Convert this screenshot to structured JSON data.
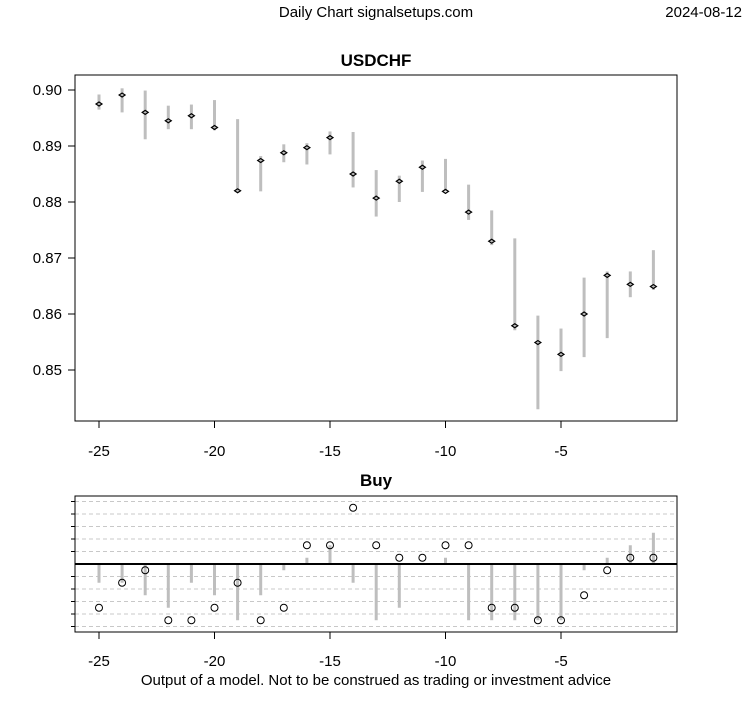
{
  "header": {
    "title": "Daily Chart signalsetups.com",
    "date": "2024-08-12"
  },
  "footer": {
    "disclaimer": "Output of a model. Not to be construed as trading or investment advice"
  },
  "chart_data": [
    {
      "type": "ohlc-range",
      "title": "USDCHF",
      "x": [
        -25,
        -24,
        -23,
        -22,
        -21,
        -20,
        -19,
        -18,
        -17,
        -16,
        -15,
        -14,
        -13,
        -12,
        -11,
        -10,
        -9,
        -8,
        -7,
        -6,
        -5,
        -4,
        -3,
        -2,
        -1
      ],
      "high": [
        0.8992,
        0.9003,
        0.8999,
        0.8972,
        0.8974,
        0.8982,
        0.8948,
        0.8882,
        0.8903,
        0.8905,
        0.8926,
        0.8925,
        0.8857,
        0.8847,
        0.8874,
        0.8877,
        0.8831,
        0.8785,
        0.8735,
        0.8597,
        0.8574,
        0.8665,
        0.8676,
        0.8676,
        0.8714
      ],
      "low": [
        0.8965,
        0.896,
        0.8912,
        0.893,
        0.893,
        0.8928,
        0.8817,
        0.8819,
        0.8871,
        0.8867,
        0.8885,
        0.8826,
        0.8774,
        0.88,
        0.8818,
        0.8819,
        0.8768,
        0.8723,
        0.8571,
        0.843,
        0.8498,
        0.8523,
        0.8557,
        0.863,
        0.8643
      ],
      "close": [
        0.8975,
        0.8991,
        0.896,
        0.8945,
        0.8954,
        0.8933,
        0.882,
        0.8874,
        0.8888,
        0.8897,
        0.8915,
        0.885,
        0.8807,
        0.8837,
        0.8862,
        0.8819,
        0.8782,
        0.873,
        0.8579,
        0.8549,
        0.8528,
        0.86,
        0.8669,
        0.8653,
        0.8649
      ],
      "xticks": [
        "-25",
        "-20",
        "-15",
        "-10",
        "-5"
      ],
      "yticks": [
        "0.85",
        "0.86",
        "0.87",
        "0.88",
        "0.89",
        "0.90"
      ],
      "ylim": [
        0.8413,
        0.9027
      ],
      "xlim": [
        -26,
        -0.0
      ],
      "colors": {
        "range": "#bebebe",
        "close": "#000000"
      }
    },
    {
      "type": "signal",
      "title": "Buy",
      "x": [
        -25,
        -24,
        -23,
        -22,
        -21,
        -20,
        -19,
        -18,
        -17,
        -16,
        -15,
        -14,
        -13,
        -12,
        -11,
        -10,
        -9,
        -8,
        -7,
        -6,
        -5,
        -4,
        -3,
        -2,
        -1
      ],
      "points": [
        -3.5,
        -1.5,
        -0.5,
        -4.5,
        -4.5,
        -3.5,
        -1.5,
        -4.5,
        -3.5,
        1.5,
        1.5,
        4.5,
        1.5,
        0.5,
        0.5,
        1.5,
        1.5,
        -3.5,
        -3.5,
        -4.5,
        -4.5,
        -2.5,
        -0.5,
        0.5,
        0.5
      ],
      "bars": [
        -1.5,
        -1.5,
        -2.5,
        -3.5,
        -1.5,
        -2.5,
        -4.5,
        -2.5,
        -0.5,
        0.5,
        1.5,
        -1.5,
        -4.5,
        -3.5,
        0,
        0.5,
        -4.5,
        -4.5,
        -4.5,
        -4.5,
        -4.5,
        -0.5,
        0.5,
        1.5,
        2.5
      ],
      "xticks": [
        "-25",
        "-20",
        "-15",
        "-10",
        "-5"
      ],
      "ylim": [
        -5.5,
        5
      ],
      "grid": true,
      "colors": {
        "bars": "#bebebe",
        "zero": "#000000",
        "grid": "#c8c8c8"
      }
    }
  ]
}
